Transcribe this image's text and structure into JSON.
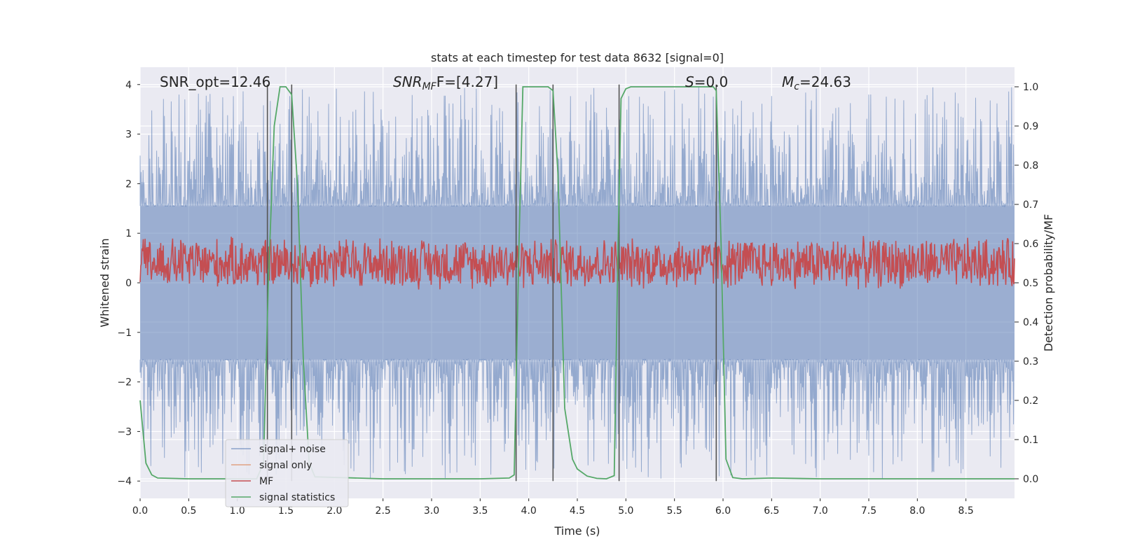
{
  "chart_data": {
    "type": "line",
    "title": "stats at each timestep for test data 8632 [signal=0]",
    "xlabel": "Time (s)",
    "ylabel": "Whitened strain",
    "ylabel_right": "Detection probability/MF",
    "xlim": [
      0.0,
      9.0
    ],
    "ylim": [
      -4.35,
      4.35
    ],
    "ylim_right": [
      -0.05,
      1.05
    ],
    "x_ticks": [
      0.0,
      0.5,
      1.0,
      1.5,
      2.0,
      2.5,
      3.0,
      3.5,
      4.0,
      4.5,
      5.0,
      5.5,
      6.0,
      6.5,
      7.0,
      7.5,
      8.0,
      8.5
    ],
    "x_tick_labels": [
      "0.0",
      "0.5",
      "1.0",
      "1.5",
      "2.0",
      "2.5",
      "3.0",
      "3.5",
      "4.0",
      "4.5",
      "5.0",
      "5.5",
      "6.0",
      "6.5",
      "7.0",
      "7.5",
      "8.0",
      "8.5"
    ],
    "y_ticks": [
      -4,
      -3,
      -2,
      -1,
      0,
      1,
      2,
      3,
      4
    ],
    "y_tick_labels": [
      "−4",
      "−3",
      "−2",
      "−1",
      "0",
      "1",
      "2",
      "3",
      "4"
    ],
    "y_ticks_right": [
      0.0,
      0.1,
      0.2,
      0.3,
      0.4,
      0.5,
      0.6,
      0.7,
      0.8,
      0.9,
      1.0
    ],
    "y_tick_labels_right": [
      "0.0",
      "0.1",
      "0.2",
      "0.3",
      "0.4",
      "0.5",
      "0.6",
      "0.7",
      "0.8",
      "0.9",
      "1.0"
    ],
    "grid": true,
    "annotations": {
      "snr_opt": "SNR_opt=12.46",
      "snr_mf_base": "SNR",
      "snr_mf_sub": "MF",
      "snr_mf_tail": "F=[4.27]",
      "s_label": "S",
      "s_value": "=0.0",
      "mc_base": "M",
      "mc_sub": "c",
      "mc_value": "=24.63"
    },
    "vertical_lines_x": [
      1.31,
      1.56,
      3.87,
      4.25,
      4.93,
      5.93
    ],
    "series": [
      {
        "name": "signal+ noise",
        "color": "#4c72b0",
        "opacity": 0.5,
        "axis": "left",
        "description": "whitened strain noise, approx. uniform band",
        "amplitude_core": 1.55,
        "amplitude_peak": 3.95
      },
      {
        "name": "signal only",
        "color": "#dd8452",
        "axis": "left",
        "values": []
      },
      {
        "name": "MF",
        "color": "#c44e52",
        "axis": "right",
        "center": 0.55,
        "spread": 0.07
      },
      {
        "name": "signal statistics",
        "color": "#55a868",
        "axis": "right",
        "x": [
          0.0,
          0.06,
          0.12,
          0.18,
          0.5,
          1.2,
          1.27,
          1.32,
          1.38,
          1.44,
          1.5,
          1.56,
          1.62,
          1.68,
          1.74,
          1.8,
          2.5,
          3.5,
          3.8,
          3.85,
          3.9,
          3.94,
          4.0,
          4.2,
          4.25,
          4.3,
          4.37,
          4.45,
          4.5,
          4.6,
          4.7,
          4.8,
          4.88,
          4.92,
          4.95,
          5.0,
          5.05,
          5.5,
          5.9,
          5.93,
          5.98,
          6.03,
          6.1,
          6.2,
          6.5,
          7.0,
          8.0,
          9.0
        ],
        "y": [
          0.2,
          0.04,
          0.01,
          0.002,
          0.0,
          0.0,
          0.04,
          0.5,
          0.9,
          1.0,
          1.0,
          0.98,
          0.75,
          0.3,
          0.04,
          0.005,
          0.0,
          0.0,
          0.002,
          0.01,
          0.6,
          1.0,
          1.0,
          1.0,
          0.99,
          0.78,
          0.18,
          0.05,
          0.025,
          0.007,
          0.001,
          0.0,
          0.008,
          0.6,
          0.97,
          0.995,
          1.0,
          1.0,
          1.0,
          0.99,
          0.6,
          0.05,
          0.003,
          0.0,
          0.002,
          0.0,
          0.0,
          0.0
        ]
      }
    ],
    "legend": {
      "placement": "lower-left",
      "entries": [
        "signal+ noise",
        "signal only",
        "MF",
        "signal statistics"
      ]
    }
  }
}
